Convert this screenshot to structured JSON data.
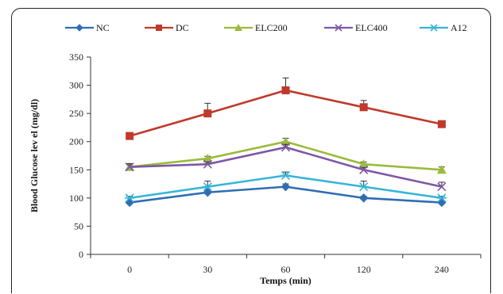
{
  "chart_data": {
    "type": "line",
    "title": "",
    "xlabel": "Temps (min)",
    "ylabel": "Blood Glucose lev el (mg/dl)",
    "categories": [
      "0",
      "30",
      "60",
      "120",
      "240"
    ],
    "ylim": [
      0,
      350
    ],
    "yticks": [
      0,
      50,
      100,
      150,
      200,
      250,
      300,
      350
    ],
    "grid": false,
    "legend_position": "top",
    "series": [
      {
        "name": "NC",
        "color": "#2E6DB4",
        "marker": "diamond",
        "values": [
          92,
          110,
          120,
          100,
          92
        ],
        "errors": [
          3,
          5,
          5,
          3,
          3
        ]
      },
      {
        "name": "DC",
        "color": "#C0392B",
        "marker": "square",
        "values": [
          210,
          250,
          291,
          261,
          231
        ],
        "errors": [
          4,
          18,
          22,
          12,
          5
        ]
      },
      {
        "name": "ELC200",
        "color": "#9BBB3B",
        "marker": "triangle",
        "values": [
          155,
          170,
          200,
          160,
          150
        ],
        "errors": [
          5,
          4,
          6,
          4,
          5
        ]
      },
      {
        "name": "ELC400",
        "color": "#7E57A6",
        "marker": "x",
        "values": [
          155,
          160,
          190,
          150,
          120
        ],
        "errors": [
          6,
          4,
          5,
          4,
          8
        ]
      },
      {
        "name": "A12",
        "color": "#36B5D8",
        "marker": "asterisk",
        "values": [
          100,
          120,
          140,
          120,
          100
        ],
        "errors": [
          3,
          10,
          6,
          10,
          3
        ]
      }
    ]
  }
}
